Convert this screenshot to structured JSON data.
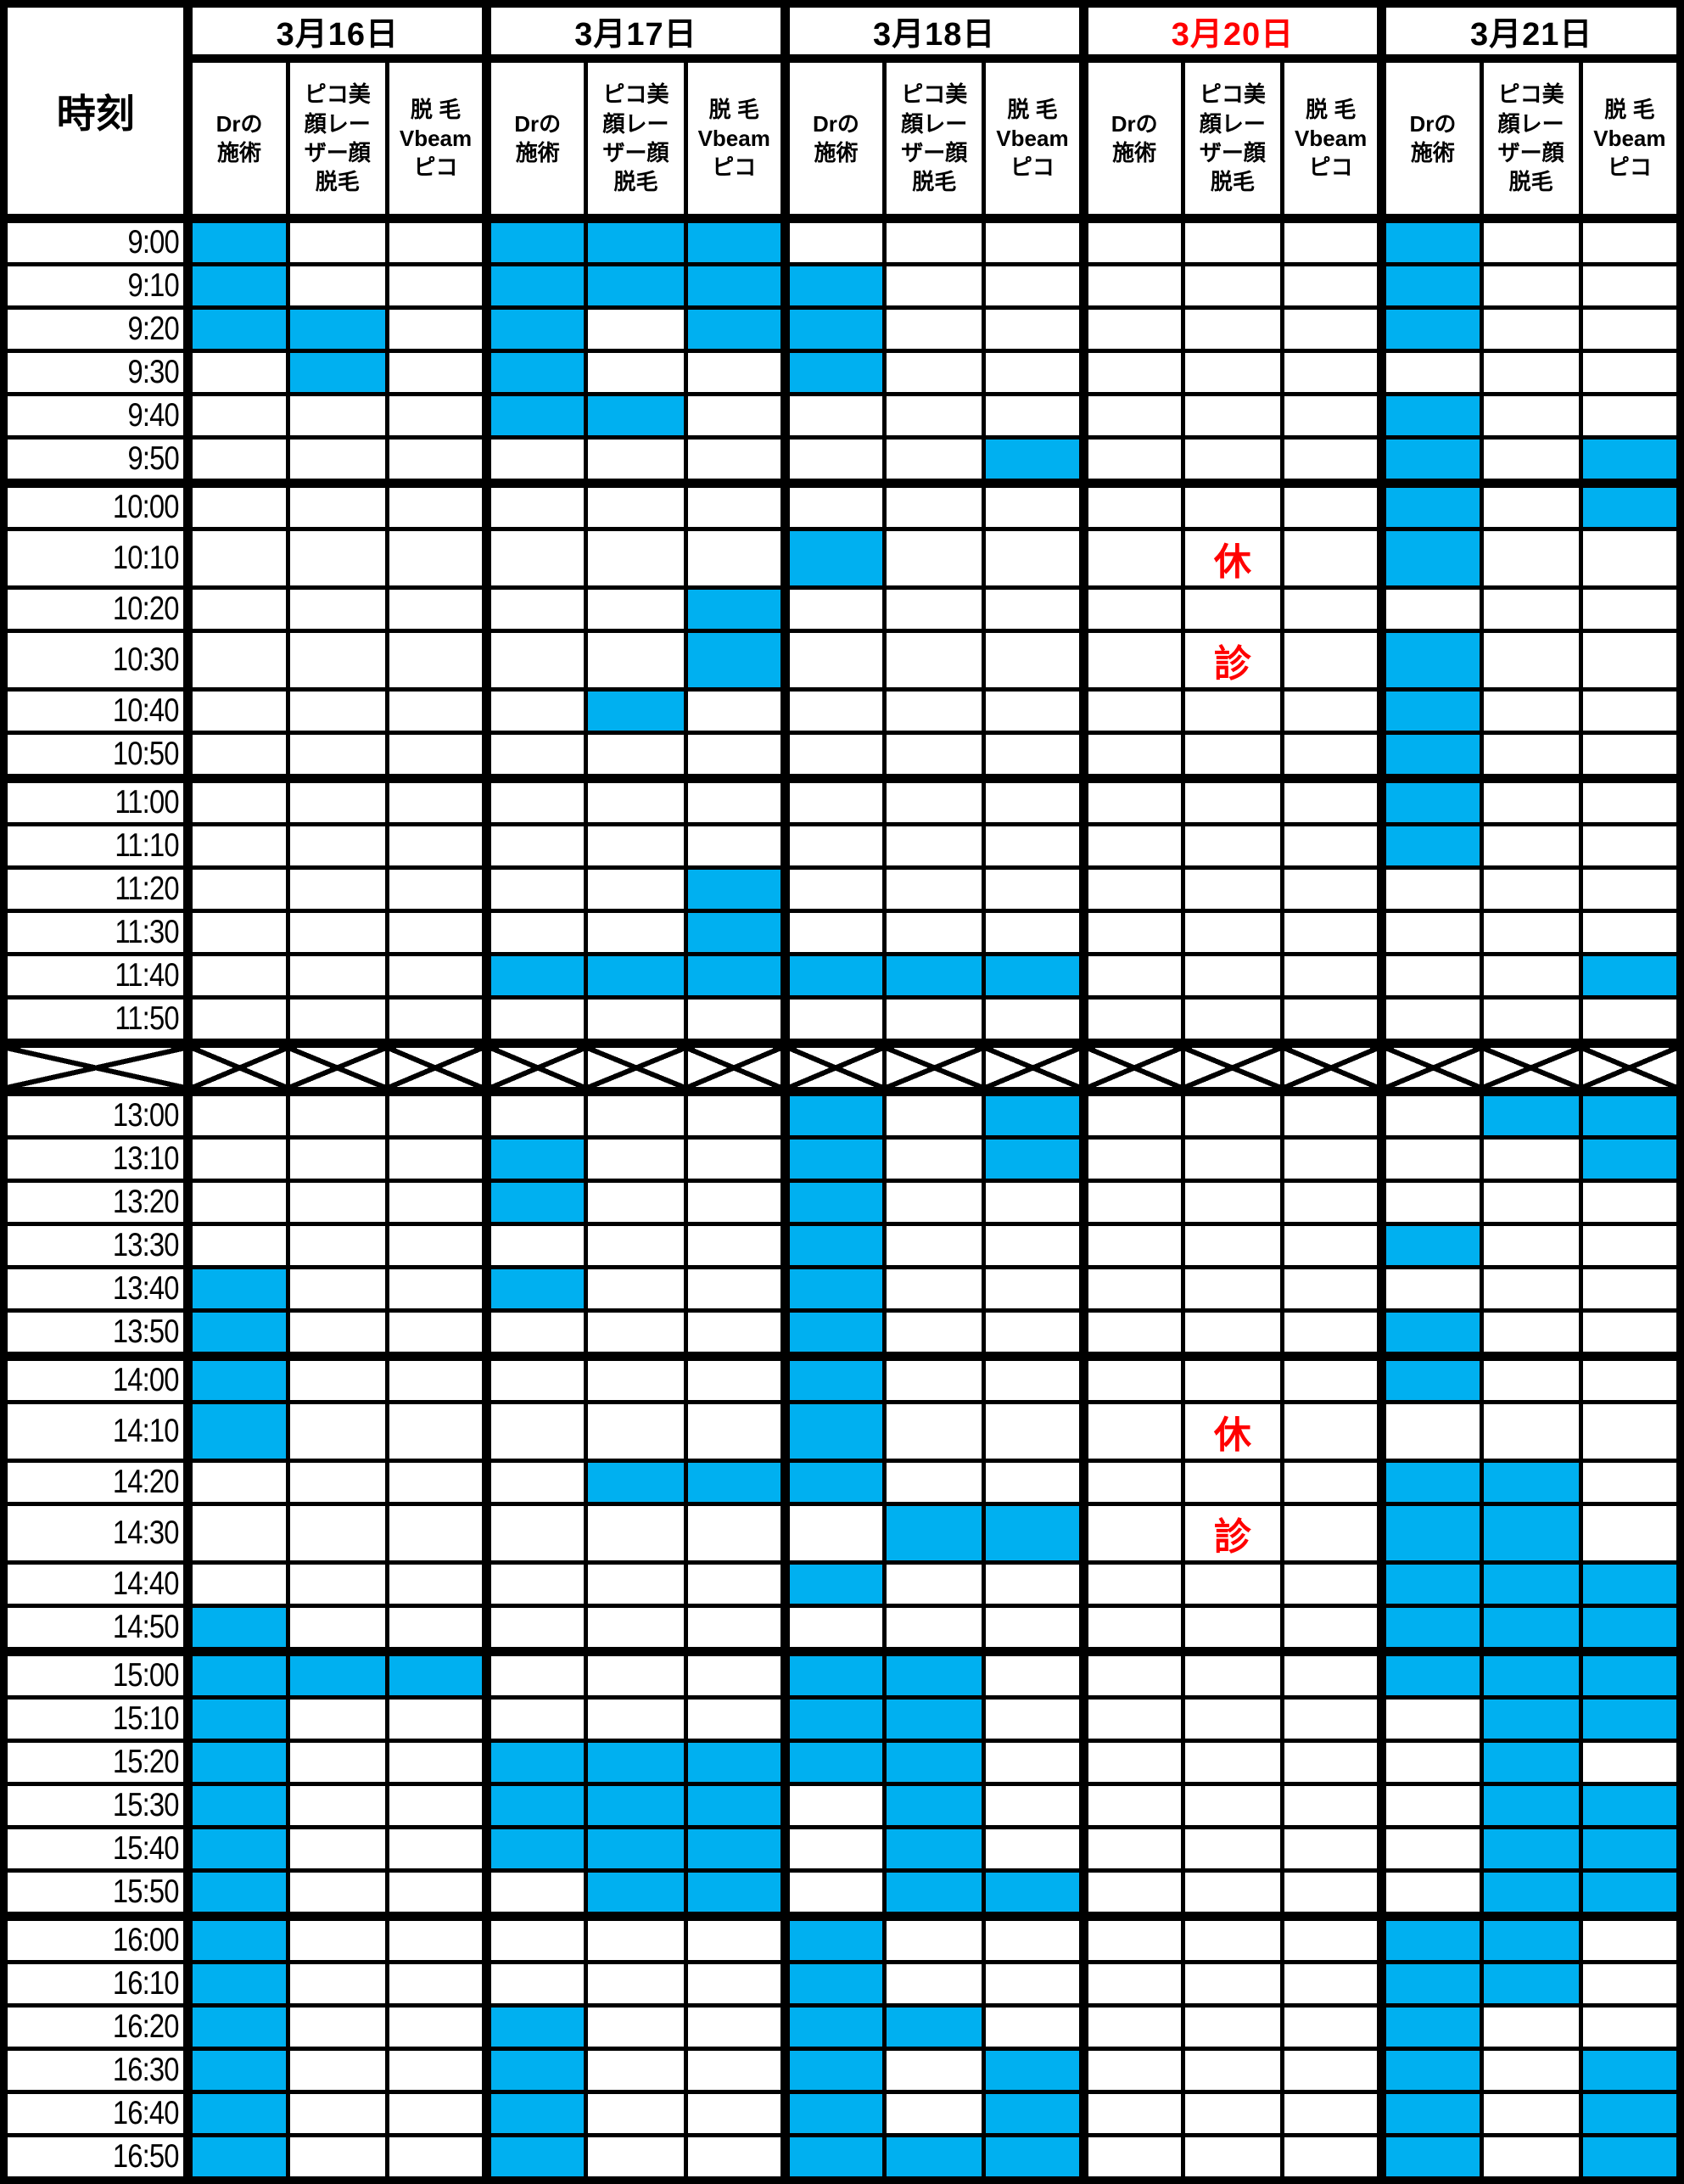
{
  "colors": {
    "filled": "#00B0F0",
    "closed_red": "#FF0000",
    "grid": "#000000",
    "background": "#FFFFFF"
  },
  "schedule": {
    "time_header_label": "時刻",
    "days": [
      {
        "label": "3月16日",
        "red": false
      },
      {
        "label": "3月17日",
        "red": false
      },
      {
        "label": "3月18日",
        "red": false
      },
      {
        "label": "3月20日",
        "red": true
      },
      {
        "label": "3月21日",
        "red": false
      }
    ],
    "service_columns": [
      {
        "label": "Drの施術",
        "lines": "Drの\n施術"
      },
      {
        "label": "ピコ美顔レーザー顔脱毛",
        "lines": "ピコ美\n顔レー\nザー顔\n脱毛"
      },
      {
        "label": "脱毛Vbeamピコ",
        "lines": "脱 毛\nVbeam\nピコ"
      }
    ],
    "closed_marks_legend": "休診",
    "rows": [
      {
        "time": "9:00",
        "thick_top": true,
        "filled": [
          0,
          3,
          4,
          5,
          12
        ]
      },
      {
        "time": "9:10",
        "filled": [
          0,
          3,
          4,
          5,
          6,
          12
        ]
      },
      {
        "time": "9:20",
        "filled": [
          0,
          1,
          3,
          5,
          6,
          12
        ]
      },
      {
        "time": "9:30",
        "filled": [
          1,
          3,
          6
        ]
      },
      {
        "time": "9:40",
        "filled": [
          3,
          4,
          12
        ]
      },
      {
        "time": "9:50",
        "filled": [
          8,
          12,
          14
        ]
      },
      {
        "time": "10:00",
        "thick_top": true,
        "filled": [
          12,
          14
        ]
      },
      {
        "time": "10:10",
        "filled": [
          6,
          12
        ],
        "text": {
          "10": "休"
        }
      },
      {
        "time": "10:20",
        "filled": [
          5
        ]
      },
      {
        "time": "10:30",
        "filled": [
          5,
          12
        ],
        "text": {
          "10": "診"
        }
      },
      {
        "time": "10:40",
        "filled": [
          4,
          12
        ]
      },
      {
        "time": "10:50",
        "filled": [
          12
        ]
      },
      {
        "time": "11:00",
        "thick_top": true,
        "filled": [
          12
        ]
      },
      {
        "time": "11:10",
        "filled": [
          12
        ]
      },
      {
        "time": "11:20",
        "filled": [
          5
        ]
      },
      {
        "time": "11:30",
        "filled": [
          5
        ]
      },
      {
        "time": "11:40",
        "filled": [
          3,
          4,
          5,
          6,
          7,
          8,
          14
        ]
      },
      {
        "time": "11:50",
        "filled": []
      },
      {
        "break": true,
        "thick_top": true
      },
      {
        "time": "13:00",
        "thick_top": true,
        "filled": [
          6,
          8,
          13,
          14
        ]
      },
      {
        "time": "13:10",
        "filled": [
          3,
          6,
          8,
          14
        ]
      },
      {
        "time": "13:20",
        "filled": [
          3,
          6
        ]
      },
      {
        "time": "13:30",
        "filled": [
          6,
          12
        ]
      },
      {
        "time": "13:40",
        "filled": [
          0,
          3,
          6
        ]
      },
      {
        "time": "13:50",
        "filled": [
          0,
          6,
          12
        ]
      },
      {
        "time": "14:00",
        "thick_top": true,
        "filled": [
          0,
          6,
          12
        ]
      },
      {
        "time": "14:10",
        "filled": [
          0,
          6
        ],
        "text": {
          "10": "休"
        }
      },
      {
        "time": "14:20",
        "filled": [
          4,
          5,
          6,
          12,
          13
        ]
      },
      {
        "time": "14:30",
        "filled": [
          7,
          8,
          12,
          13
        ],
        "text": {
          "10": "診"
        }
      },
      {
        "time": "14:40",
        "filled": [
          6,
          12,
          13,
          14
        ]
      },
      {
        "time": "14:50",
        "filled": [
          0,
          12,
          13,
          14
        ]
      },
      {
        "time": "15:00",
        "thick_top": true,
        "filled": [
          0,
          1,
          2,
          6,
          7,
          12,
          13,
          14
        ]
      },
      {
        "time": "15:10",
        "filled": [
          0,
          6,
          7,
          13,
          14
        ]
      },
      {
        "time": "15:20",
        "filled": [
          0,
          3,
          4,
          5,
          6,
          7,
          13
        ]
      },
      {
        "time": "15:30",
        "filled": [
          0,
          3,
          4,
          5,
          7,
          13,
          14
        ]
      },
      {
        "time": "15:40",
        "filled": [
          0,
          3,
          4,
          5,
          7,
          13,
          14
        ]
      },
      {
        "time": "15:50",
        "filled": [
          0,
          4,
          5,
          7,
          8,
          13,
          14
        ]
      },
      {
        "time": "16:00",
        "thick_top": true,
        "filled": [
          0,
          6,
          12,
          13
        ]
      },
      {
        "time": "16:10",
        "filled": [
          0,
          6,
          12,
          13
        ]
      },
      {
        "time": "16:20",
        "filled": [
          0,
          3,
          6,
          7,
          12
        ]
      },
      {
        "time": "16:30",
        "filled": [
          0,
          3,
          6,
          8,
          12,
          14
        ]
      },
      {
        "time": "16:40",
        "filled": [
          0,
          3,
          6,
          8,
          12,
          14
        ]
      },
      {
        "time": "16:50",
        "filled": [
          0,
          3,
          6,
          7,
          8,
          12,
          14
        ]
      }
    ]
  }
}
